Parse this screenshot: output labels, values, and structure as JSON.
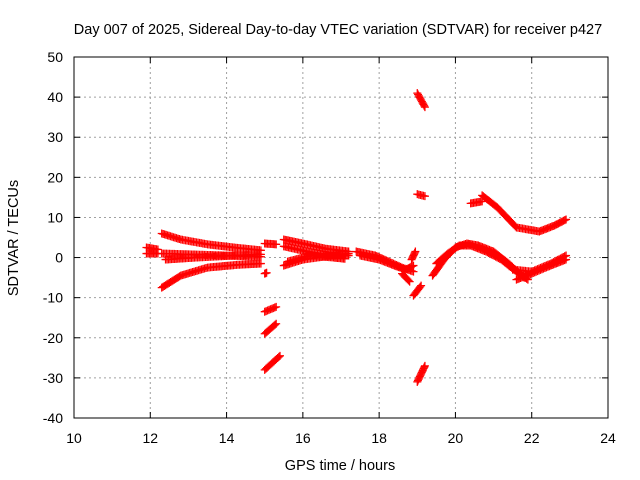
{
  "chart_data": {
    "type": "scatter",
    "title": "Day 007 of 2025, Sidereal Day-to-day VTEC variation (SDTVAR) for receiver p427",
    "xlabel": "GPS time / hours",
    "ylabel": "SDTVAR / TECUs",
    "xlim": [
      10,
      24
    ],
    "ylim": [
      -40,
      50
    ],
    "x_ticks": [
      10,
      12,
      14,
      16,
      18,
      20,
      22,
      24
    ],
    "y_ticks": [
      -40,
      -30,
      -20,
      -10,
      0,
      10,
      20,
      30,
      40,
      50
    ],
    "grid": true,
    "marker": "plus",
    "color": "#ff0000",
    "tracks": [
      {
        "points": [
          [
            11.9,
            2.5
          ],
          [
            12.2,
            2.0
          ]
        ]
      },
      {
        "points": [
          [
            11.9,
            1.0
          ],
          [
            12.2,
            1.0
          ]
        ]
      },
      {
        "points": [
          [
            12.3,
            6.0
          ],
          [
            12.8,
            4.5
          ],
          [
            13.5,
            3.3
          ],
          [
            14.2,
            2.5
          ],
          [
            14.9,
            1.8
          ]
        ]
      },
      {
        "points": [
          [
            12.3,
            1.0
          ],
          [
            13.0,
            0.8
          ],
          [
            14.0,
            0.5
          ],
          [
            14.9,
            0.2
          ]
        ]
      },
      {
        "points": [
          [
            12.4,
            -0.5
          ],
          [
            13.2,
            0.0
          ],
          [
            14.2,
            0.5
          ],
          [
            14.9,
            0.8
          ]
        ]
      },
      {
        "points": [
          [
            12.3,
            -7.5
          ],
          [
            12.8,
            -4.5
          ],
          [
            13.5,
            -2.5
          ],
          [
            14.3,
            -1.8
          ],
          [
            14.9,
            -1.5
          ]
        ]
      },
      {
        "points": [
          [
            15.0,
            -4.0
          ],
          [
            15.05,
            -3.8
          ]
        ]
      },
      {
        "points": [
          [
            15.0,
            3.5
          ],
          [
            15.3,
            3.3
          ]
        ]
      },
      {
        "points": [
          [
            15.0,
            -13.5
          ],
          [
            15.3,
            -12.3
          ]
        ]
      },
      {
        "points": [
          [
            15.0,
            -19.0
          ],
          [
            15.3,
            -16.5
          ]
        ]
      },
      {
        "points": [
          [
            15.0,
            -28.0
          ],
          [
            15.4,
            -24.5
          ]
        ]
      },
      {
        "points": [
          [
            15.5,
            4.5
          ],
          [
            16.0,
            3.5
          ],
          [
            16.6,
            2.2
          ],
          [
            17.2,
            1.5
          ]
        ]
      },
      {
        "points": [
          [
            15.5,
            2.8
          ],
          [
            16.1,
            1.5
          ],
          [
            16.7,
            0.5
          ],
          [
            17.2,
            0.5
          ]
        ]
      },
      {
        "points": [
          [
            15.5,
            -2.0
          ],
          [
            16.0,
            -0.5
          ],
          [
            16.6,
            0.3
          ],
          [
            17.2,
            1.0
          ]
        ]
      },
      {
        "points": [
          [
            15.6,
            -1.0
          ],
          [
            16.2,
            0.5
          ],
          [
            16.8,
            0.0
          ],
          [
            17.1,
            -0.3
          ]
        ]
      },
      {
        "points": [
          [
            17.4,
            1.5
          ],
          [
            17.9,
            0.5
          ],
          [
            18.3,
            -1.2
          ],
          [
            18.6,
            -2.5
          ],
          [
            18.9,
            -3.5
          ]
        ]
      },
      {
        "points": [
          [
            17.5,
            0.5
          ],
          [
            18.0,
            -0.5
          ],
          [
            18.4,
            -2.0
          ],
          [
            18.7,
            -3.0
          ],
          [
            18.9,
            -2.0
          ]
        ]
      },
      {
        "points": [
          [
            18.6,
            -4.0
          ],
          [
            18.8,
            -6.0
          ]
        ]
      },
      {
        "points": [
          [
            18.85,
            -0.5
          ],
          [
            18.95,
            1.5
          ]
        ]
      },
      {
        "points": [
          [
            19.0,
            41.0
          ],
          [
            19.2,
            37.5
          ]
        ]
      },
      {
        "points": [
          [
            19.0,
            15.8
          ],
          [
            19.2,
            15.3
          ]
        ]
      },
      {
        "points": [
          [
            18.9,
            -9.5
          ],
          [
            19.1,
            -7.0
          ]
        ]
      },
      {
        "points": [
          [
            19.0,
            -31.0
          ],
          [
            19.2,
            -27.0
          ]
        ]
      },
      {
        "points": [
          [
            19.4,
            -4.5
          ],
          [
            19.7,
            -0.5
          ],
          [
            20.0,
            2.5
          ],
          [
            20.3,
            3.5
          ],
          [
            20.6,
            3.0
          ],
          [
            21.0,
            1.5
          ],
          [
            21.4,
            -1.5
          ],
          [
            21.8,
            -5.0
          ]
        ]
      },
      {
        "points": [
          [
            19.5,
            -1.5
          ],
          [
            19.8,
            1.0
          ],
          [
            20.1,
            3.0
          ],
          [
            20.4,
            3.0
          ],
          [
            20.8,
            1.5
          ],
          [
            21.2,
            -0.5
          ],
          [
            21.6,
            -3.5
          ],
          [
            21.9,
            -5.5
          ]
        ]
      },
      {
        "points": [
          [
            20.4,
            13.5
          ],
          [
            20.7,
            14.0
          ]
        ]
      },
      {
        "points": [
          [
            20.7,
            15.5
          ],
          [
            21.1,
            12.5
          ],
          [
            21.6,
            7.5
          ],
          [
            22.2,
            6.5
          ],
          [
            22.6,
            8.0
          ],
          [
            22.9,
            9.5
          ]
        ]
      },
      {
        "points": [
          [
            21.5,
            -3.0
          ],
          [
            22.0,
            -3.5
          ],
          [
            22.5,
            -1.5
          ],
          [
            22.9,
            0.5
          ]
        ]
      },
      {
        "points": [
          [
            21.6,
            -5.5
          ],
          [
            22.0,
            -4.0
          ],
          [
            22.5,
            -2.0
          ],
          [
            22.9,
            -0.5
          ]
        ]
      }
    ]
  }
}
